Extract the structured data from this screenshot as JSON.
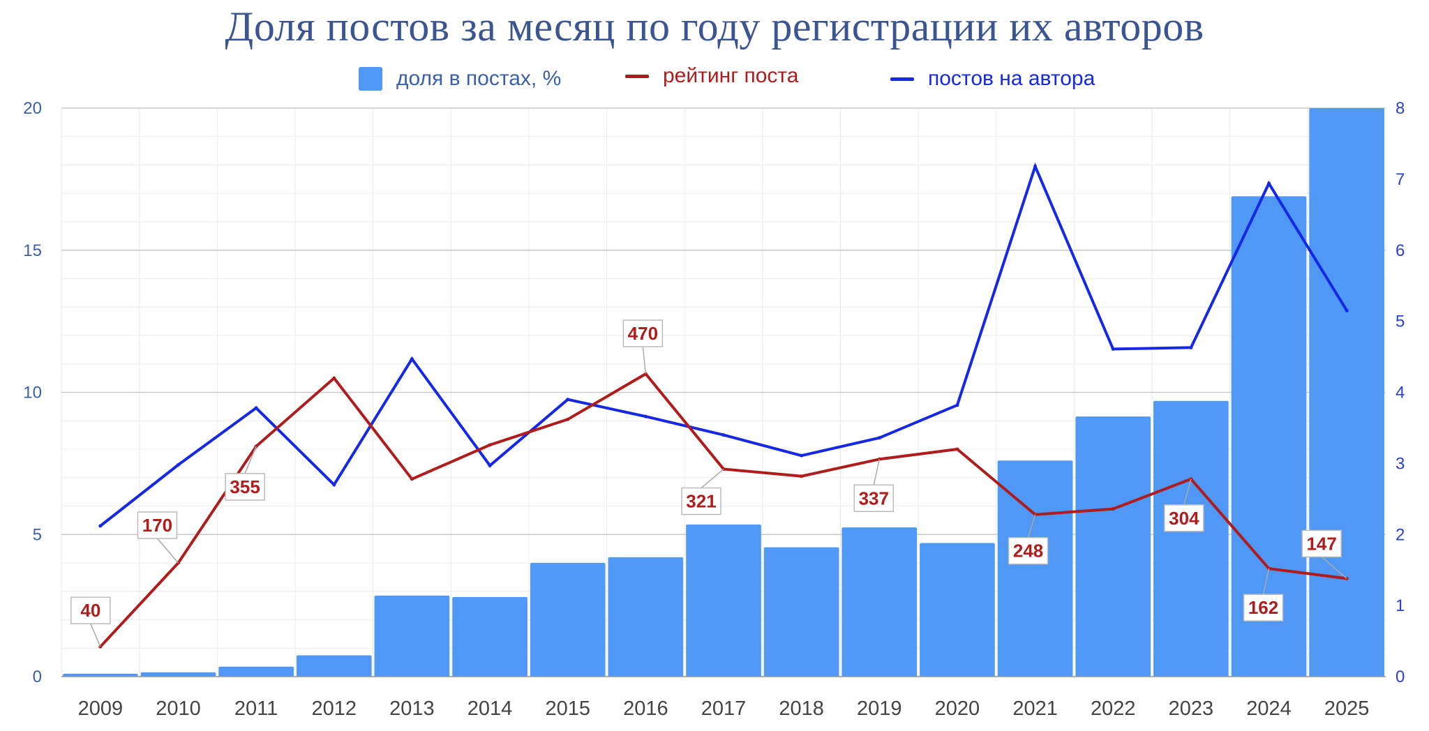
{
  "chart_data": {
    "type": "bar",
    "title": "Доля постов за месяц по году регистрации их авторов",
    "categories": [
      "2009",
      "2010",
      "2011",
      "2012",
      "2013",
      "2014",
      "2015",
      "2016",
      "2017",
      "2018",
      "2019",
      "2020",
      "2021",
      "2022",
      "2023",
      "2024",
      "2025"
    ],
    "series": [
      {
        "name": "доля в постах, %",
        "type": "bar",
        "axis": "left",
        "color": "#4f98f5",
        "values": [
          0.1,
          0.15,
          0.35,
          0.75,
          2.85,
          2.8,
          4.0,
          4.2,
          5.35,
          4.55,
          5.25,
          4.7,
          7.6,
          9.15,
          9.7,
          16.9,
          20.0
        ]
      },
      {
        "name": "рейтинг поста",
        "type": "line",
        "axis": "left",
        "color": "#b01c1c",
        "values": [
          1.05,
          4.0,
          8.1,
          10.5,
          6.95,
          8.15,
          9.05,
          10.65,
          7.3,
          7.05,
          7.65,
          8.0,
          5.7,
          5.9,
          6.95,
          3.8,
          3.45
        ],
        "data_labels": [
          "40",
          "170",
          "355",
          "",
          "",
          "",
          "",
          "470",
          "321",
          "",
          "337",
          "",
          "248",
          "",
          "304",
          "162",
          "147"
        ]
      },
      {
        "name": "постов на автора",
        "type": "line",
        "axis": "right",
        "color": "#1428e6",
        "values": [
          2.12,
          2.98,
          3.78,
          2.7,
          4.47,
          2.97,
          3.9,
          3.66,
          3.4,
          3.11,
          3.36,
          3.82,
          7.18,
          4.61,
          4.63,
          6.94,
          5.15
        ]
      }
    ],
    "left_axis": {
      "ylim": [
        0,
        20
      ],
      "ticks": [
        "0",
        "5",
        "10",
        "15",
        "20"
      ]
    },
    "right_axis": {
      "ylim": [
        0,
        8
      ],
      "ticks": [
        "0",
        "1",
        "2",
        "3",
        "4",
        "5",
        "6",
        "7",
        "8"
      ]
    },
    "grid": true,
    "legend_position": "top"
  }
}
